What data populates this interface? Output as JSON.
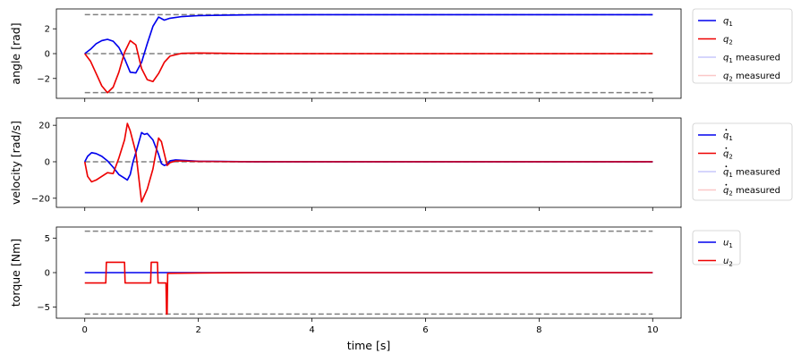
{
  "chart_data": [
    {
      "type": "line",
      "ylabel": "angle [rad]",
      "xlabel": "",
      "xlim": [
        -0.5,
        10.5
      ],
      "ylim": [
        -3.6,
        3.6
      ],
      "xticks": [
        "0",
        "2",
        "4",
        "6",
        "8",
        "10"
      ],
      "xtick_values": [
        0,
        2,
        4,
        6,
        8,
        10
      ],
      "show_xticklabels": false,
      "yticks": [
        "−2",
        "0",
        "2"
      ],
      "ytick_values": [
        -2,
        0,
        2
      ],
      "grid": false,
      "legend_position": "outside-right",
      "reference_lines": [
        {
          "y": 3.1416,
          "color": "#808080",
          "dash": "dashed"
        },
        {
          "y": 0,
          "color": "#808080",
          "dash": "dashed"
        },
        {
          "y": -3.1416,
          "color": "#808080",
          "dash": "dashed"
        }
      ],
      "series": [
        {
          "name": "q1",
          "label_base": "q",
          "label_sub": "1",
          "label_suffix": "",
          "dot": false,
          "color": "#0000ee",
          "alpha": 1,
          "x": [
            0,
            0.1,
            0.2,
            0.3,
            0.4,
            0.5,
            0.6,
            0.7,
            0.8,
            0.9,
            1.0,
            1.1,
            1.2,
            1.3,
            1.4,
            1.5,
            1.7,
            2.0,
            2.5,
            3.0,
            4.0,
            6.0,
            8.0,
            10.0
          ],
          "y": [
            0,
            0.35,
            0.8,
            1.05,
            1.15,
            1.0,
            0.5,
            -0.4,
            -1.5,
            -1.55,
            -0.7,
            0.8,
            2.2,
            2.95,
            2.7,
            2.85,
            2.98,
            3.06,
            3.1,
            3.13,
            3.14,
            3.14,
            3.14,
            3.14
          ]
        },
        {
          "name": "q2",
          "label_base": "q",
          "label_sub": "2",
          "label_suffix": "",
          "dot": false,
          "color": "#ee0000",
          "alpha": 1,
          "x": [
            0,
            0.1,
            0.2,
            0.3,
            0.4,
            0.5,
            0.6,
            0.7,
            0.8,
            0.9,
            1.0,
            1.1,
            1.2,
            1.3,
            1.4,
            1.5,
            1.7,
            2.0,
            2.5,
            3.0,
            4.0,
            6.0,
            8.0,
            10.0
          ],
          "y": [
            0,
            -0.6,
            -1.6,
            -2.6,
            -3.15,
            -2.7,
            -1.5,
            0.1,
            1.05,
            0.7,
            -1.2,
            -2.1,
            -2.25,
            -1.6,
            -0.7,
            -0.2,
            0.02,
            0.05,
            0.02,
            0,
            0,
            0,
            0,
            0
          ]
        },
        {
          "name": "q1 measured",
          "label_base": "q",
          "label_sub": "1",
          "label_suffix": " measured",
          "dot": false,
          "color": "#0000ee",
          "alpha": 0.22,
          "x": [
            0,
            0.1,
            0.2,
            0.3,
            0.4,
            0.5,
            0.6,
            0.7,
            0.8,
            0.9,
            1.0,
            1.1,
            1.2,
            1.3,
            1.4,
            1.5,
            1.7,
            2.0,
            2.5,
            3.0,
            4.0,
            6.0,
            8.0,
            10.0
          ],
          "y": [
            0,
            0.35,
            0.8,
            1.05,
            1.15,
            1.0,
            0.5,
            -0.4,
            -1.5,
            -1.55,
            -0.7,
            0.8,
            2.2,
            2.95,
            2.7,
            2.85,
            2.98,
            3.06,
            3.1,
            3.13,
            3.14,
            3.14,
            3.14,
            3.14
          ]
        },
        {
          "name": "q2 measured",
          "label_base": "q",
          "label_sub": "2",
          "label_suffix": " measured",
          "dot": false,
          "color": "#ee0000",
          "alpha": 0.22,
          "x": [
            0,
            0.1,
            0.2,
            0.3,
            0.4,
            0.5,
            0.6,
            0.7,
            0.8,
            0.9,
            1.0,
            1.1,
            1.2,
            1.3,
            1.4,
            1.5,
            1.7,
            2.0,
            2.5,
            3.0,
            4.0,
            6.0,
            8.0,
            10.0
          ],
          "y": [
            0,
            -0.6,
            -1.6,
            -2.6,
            -3.15,
            -2.7,
            -1.5,
            0.1,
            1.05,
            0.7,
            -1.2,
            -2.1,
            -2.25,
            -1.6,
            -0.7,
            -0.2,
            0.02,
            0.05,
            0.02,
            0,
            0,
            0,
            0,
            0
          ]
        }
      ]
    },
    {
      "type": "line",
      "ylabel": "velocity [rad/s]",
      "xlabel": "",
      "xlim": [
        -0.5,
        10.5
      ],
      "ylim": [
        -25,
        24
      ],
      "xticks": [
        "0",
        "2",
        "4",
        "6",
        "8",
        "10"
      ],
      "xtick_values": [
        0,
        2,
        4,
        6,
        8,
        10
      ],
      "show_xticklabels": false,
      "yticks": [
        "−20",
        "0",
        "20"
      ],
      "ytick_values": [
        -20,
        0,
        20
      ],
      "grid": false,
      "legend_position": "outside-right",
      "reference_lines": [
        {
          "y": 0,
          "color": "#808080",
          "dash": "dashed"
        }
      ],
      "series": [
        {
          "name": "q̇1",
          "label_base": "q",
          "label_sub": "1",
          "label_suffix": "",
          "dot": true,
          "color": "#0000ee",
          "alpha": 1,
          "x": [
            0,
            0.05,
            0.12,
            0.2,
            0.3,
            0.4,
            0.5,
            0.6,
            0.7,
            0.75,
            0.8,
            0.85,
            0.9,
            1.0,
            1.05,
            1.1,
            1.2,
            1.3,
            1.35,
            1.4,
            1.45,
            1.5,
            1.6,
            2.0,
            3.0,
            10.0
          ],
          "y": [
            0,
            3,
            5,
            4.5,
            3,
            0.5,
            -3,
            -7,
            -9,
            -10,
            -7,
            0,
            5,
            16,
            15,
            15.5,
            12,
            4,
            -1,
            -2,
            -1.5,
            0.5,
            1,
            0.3,
            0,
            0
          ]
        },
        {
          "name": "q̇2",
          "label_base": "q",
          "label_sub": "2",
          "label_suffix": "",
          "dot": true,
          "color": "#ee0000",
          "alpha": 1,
          "x": [
            0,
            0.05,
            0.12,
            0.2,
            0.3,
            0.4,
            0.5,
            0.6,
            0.7,
            0.75,
            0.8,
            0.9,
            1.0,
            1.1,
            1.2,
            1.3,
            1.35,
            1.45,
            1.5,
            1.6,
            2.0,
            3.0,
            10.0
          ],
          "y": [
            0,
            -8,
            -11,
            -10,
            -8,
            -6,
            -6.5,
            2,
            12,
            21,
            17,
            5,
            -22,
            -15,
            -4,
            13,
            11,
            -2,
            -0.5,
            0.5,
            0.2,
            0,
            0
          ]
        },
        {
          "name": "q̇1 measured",
          "label_base": "q",
          "label_sub": "1",
          "label_suffix": " measured",
          "dot": true,
          "color": "#0000ee",
          "alpha": 0.22,
          "x": [
            0,
            0.05,
            0.12,
            0.2,
            0.3,
            0.4,
            0.5,
            0.6,
            0.7,
            0.75,
            0.8,
            0.85,
            0.9,
            1.0,
            1.05,
            1.1,
            1.2,
            1.3,
            1.35,
            1.4,
            1.45,
            1.5,
            1.6,
            2.0,
            3.0,
            10.0
          ],
          "y": [
            0,
            3,
            5,
            4.5,
            3,
            0.5,
            -3,
            -7,
            -9,
            -10,
            -7,
            0,
            5,
            16,
            15,
            15.5,
            12,
            4,
            -1,
            -2,
            -1.5,
            0.5,
            1,
            0.3,
            0,
            0
          ]
        },
        {
          "name": "q̇2 measured",
          "label_base": "q",
          "label_sub": "2",
          "label_suffix": " measured",
          "dot": true,
          "color": "#ee0000",
          "alpha": 0.22,
          "x": [
            0,
            0.05,
            0.12,
            0.2,
            0.3,
            0.4,
            0.5,
            0.6,
            0.7,
            0.75,
            0.8,
            0.9,
            1.0,
            1.1,
            1.2,
            1.3,
            1.35,
            1.45,
            1.5,
            1.6,
            2.0,
            3.0,
            10.0
          ],
          "y": [
            0,
            -8,
            -11,
            -10,
            -8,
            -6,
            -6.5,
            2,
            12,
            21,
            17,
            5,
            -22,
            -15,
            -4,
            13,
            11,
            -2,
            -0.5,
            0.5,
            0.2,
            0,
            0
          ]
        }
      ]
    },
    {
      "type": "line",
      "ylabel": "torque [Nm]",
      "xlabel": "time [s]",
      "xlim": [
        -0.5,
        10.5
      ],
      "ylim": [
        -6.6,
        6.6
      ],
      "xticks": [
        "0",
        "2",
        "4",
        "6",
        "8",
        "10"
      ],
      "xtick_values": [
        0,
        2,
        4,
        6,
        8,
        10
      ],
      "show_xticklabels": true,
      "yticks": [
        "−5",
        "0",
        "5"
      ],
      "ytick_values": [
        -5,
        0,
        5
      ],
      "grid": false,
      "legend_position": "outside-right",
      "reference_lines": [
        {
          "y": 6,
          "color": "#808080",
          "dash": "dashed"
        },
        {
          "y": -6,
          "color": "#808080",
          "dash": "dashed"
        }
      ],
      "series": [
        {
          "name": "u1",
          "label_base": "u",
          "label_sub": "1",
          "label_suffix": "",
          "dot": false,
          "color": "#0000ee",
          "alpha": 1,
          "x": [
            0,
            10
          ],
          "y": [
            0,
            0
          ]
        },
        {
          "name": "u2",
          "label_base": "u",
          "label_sub": "2",
          "label_suffix": "",
          "dot": false,
          "color": "#ee0000",
          "alpha": 1,
          "x": [
            0,
            0.37,
            0.38,
            0.7,
            0.71,
            1.16,
            1.17,
            1.28,
            1.29,
            1.34,
            1.35,
            1.43,
            1.44,
            1.45,
            1.46,
            2.0,
            3.0,
            10.0
          ],
          "y": [
            -1.5,
            -1.5,
            1.5,
            1.5,
            -1.5,
            -1.5,
            1.5,
            1.5,
            -1.5,
            -1.5,
            -1.5,
            -1.5,
            -6.0,
            -6.0,
            -0.1,
            -0.05,
            0,
            0
          ]
        }
      ]
    }
  ]
}
